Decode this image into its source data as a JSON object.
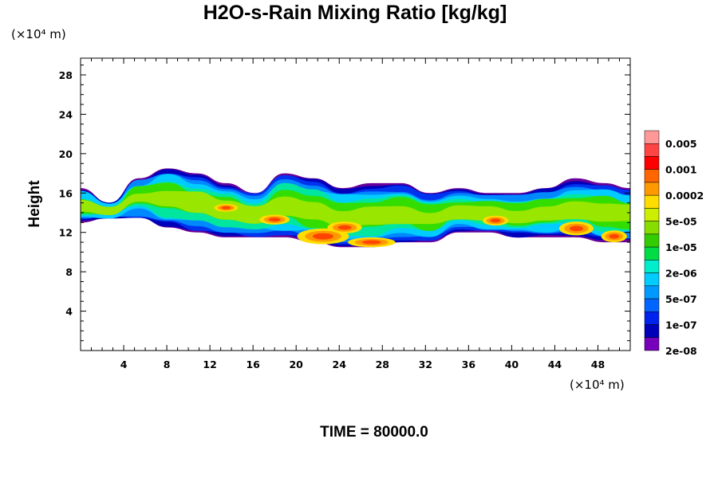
{
  "chart_data": {
    "type": "heatmap",
    "title": "H2O-s-Rain Mixing Ratio [kg/kg]",
    "xlabel": "",
    "ylabel": "Height",
    "x_unit": "(×10⁴ m)",
    "y_unit": "(×10⁴ m)",
    "xlim": [
      0,
      51
    ],
    "ylim": [
      0,
      29.7
    ],
    "x_ticks": [
      "4",
      "8",
      "12",
      "16",
      "20",
      "24",
      "28",
      "32",
      "36",
      "40",
      "44",
      "48"
    ],
    "y_ticks": [
      "4",
      "8",
      "12",
      "16",
      "20",
      "24",
      "28"
    ],
    "colorbar_labels": [
      "0.005",
      "0.001",
      "0.0002",
      "5e-05",
      "1e-05",
      "2e-06",
      "5e-07",
      "1e-07",
      "2e-08"
    ],
    "colorbar_colors": [
      "#ff9999",
      "#ff4444",
      "#ff0000",
      "#ff6600",
      "#ff9900",
      "#ffdd00",
      "#ccee00",
      "#88dd00",
      "#33cc00",
      "#00dd44",
      "#00eecc",
      "#00ccff",
      "#0099ff",
      "#0066ff",
      "#0022ee",
      "#0000bb",
      "#7700bb"
    ],
    "grid": false,
    "legend": "right colorbar",
    "field": {
      "description_of_layer": "cloud band of rain mixing ratio",
      "top_height": [
        16.5,
        15,
        17.5,
        18.5,
        18,
        17,
        16,
        18,
        17.5,
        16.5,
        17,
        17,
        16,
        16.5,
        16,
        16,
        16.5,
        17.5,
        17,
        16.5
      ],
      "bottom_height": [
        13,
        13.5,
        13.5,
        12.5,
        12,
        11.5,
        11.5,
        11.5,
        11,
        10.5,
        10.5,
        11,
        11,
        12,
        12,
        11.5,
        11.5,
        11.5,
        11,
        11
      ],
      "x_nodes": [
        0,
        2.7,
        5.4,
        8.1,
        10.8,
        13.5,
        16.2,
        18.9,
        21.6,
        24.3,
        27,
        29.7,
        32.4,
        35.1,
        37.8,
        40.5,
        43.2,
        45.9,
        48.6,
        51
      ]
    }
  },
  "footer": {
    "time_label": "TIME = 80000.0"
  }
}
